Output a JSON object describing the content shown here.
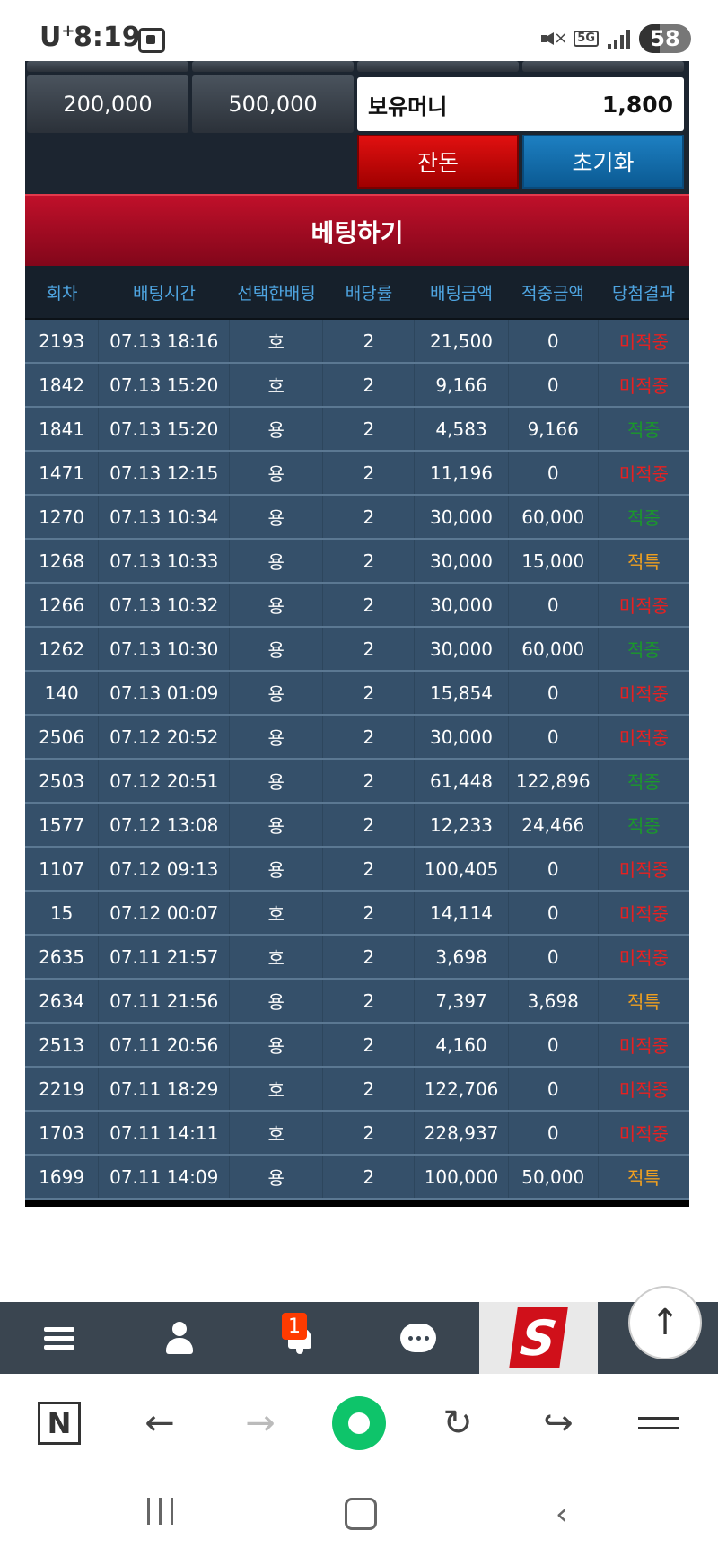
{
  "status_bar": {
    "carrier": "U",
    "carrier_sup": "+",
    "time": "8:19",
    "network": "5G",
    "battery": "58"
  },
  "panel": {
    "chip_200k": "200,000",
    "chip_500k": "500,000",
    "money_label": "보유머니",
    "money_value": "1,800",
    "change_button": "잔돈",
    "reset_button": "초기화",
    "bet_button": "베팅하기"
  },
  "table": {
    "headers": [
      "회차",
      "배팅시간",
      "선택한배팅",
      "배당률",
      "배팅금액",
      "적중금액",
      "당첨결과"
    ],
    "rows": [
      [
        "2193",
        "07.13 18:16",
        "호",
        "2",
        "21,500",
        "0",
        "미적중"
      ],
      [
        "1842",
        "07.13 15:20",
        "호",
        "2",
        "9,166",
        "0",
        "미적중"
      ],
      [
        "1841",
        "07.13 15:20",
        "용",
        "2",
        "4,583",
        "9,166",
        "적중"
      ],
      [
        "1471",
        "07.13 12:15",
        "용",
        "2",
        "11,196",
        "0",
        "미적중"
      ],
      [
        "1270",
        "07.13 10:34",
        "용",
        "2",
        "30,000",
        "60,000",
        "적중"
      ],
      [
        "1268",
        "07.13 10:33",
        "용",
        "2",
        "30,000",
        "15,000",
        "적특"
      ],
      [
        "1266",
        "07.13 10:32",
        "용",
        "2",
        "30,000",
        "0",
        "미적중"
      ],
      [
        "1262",
        "07.13 10:30",
        "용",
        "2",
        "30,000",
        "60,000",
        "적중"
      ],
      [
        "140",
        "07.13 01:09",
        "용",
        "2",
        "15,854",
        "0",
        "미적중"
      ],
      [
        "2506",
        "07.12 20:52",
        "용",
        "2",
        "30,000",
        "0",
        "미적중"
      ],
      [
        "2503",
        "07.12 20:51",
        "용",
        "2",
        "61,448",
        "122,896",
        "적중"
      ],
      [
        "1577",
        "07.12 13:08",
        "용",
        "2",
        "12,233",
        "24,466",
        "적중"
      ],
      [
        "1107",
        "07.12 09:13",
        "용",
        "2",
        "100,405",
        "0",
        "미적중"
      ],
      [
        "15",
        "07.12 00:07",
        "호",
        "2",
        "14,114",
        "0",
        "미적중"
      ],
      [
        "2635",
        "07.11 21:57",
        "호",
        "2",
        "3,698",
        "0",
        "미적중"
      ],
      [
        "2634",
        "07.11 21:56",
        "용",
        "2",
        "7,397",
        "3,698",
        "적특"
      ],
      [
        "2513",
        "07.11 20:56",
        "용",
        "2",
        "4,160",
        "0",
        "미적중"
      ],
      [
        "2219",
        "07.11 18:29",
        "호",
        "2",
        "122,706",
        "0",
        "미적중"
      ],
      [
        "1703",
        "07.11 14:11",
        "호",
        "2",
        "228,937",
        "0",
        "미적중"
      ],
      [
        "1699",
        "07.11 14:09",
        "용",
        "2",
        "100,000",
        "50,000",
        "적특"
      ]
    ]
  },
  "site_nav": {
    "notification_count": "1",
    "logo_letter": "S"
  },
  "colors": {
    "loss": "#e82020",
    "win": "#1a9a2a",
    "special": "#f0a020",
    "header_text": "#4ea4e0"
  }
}
